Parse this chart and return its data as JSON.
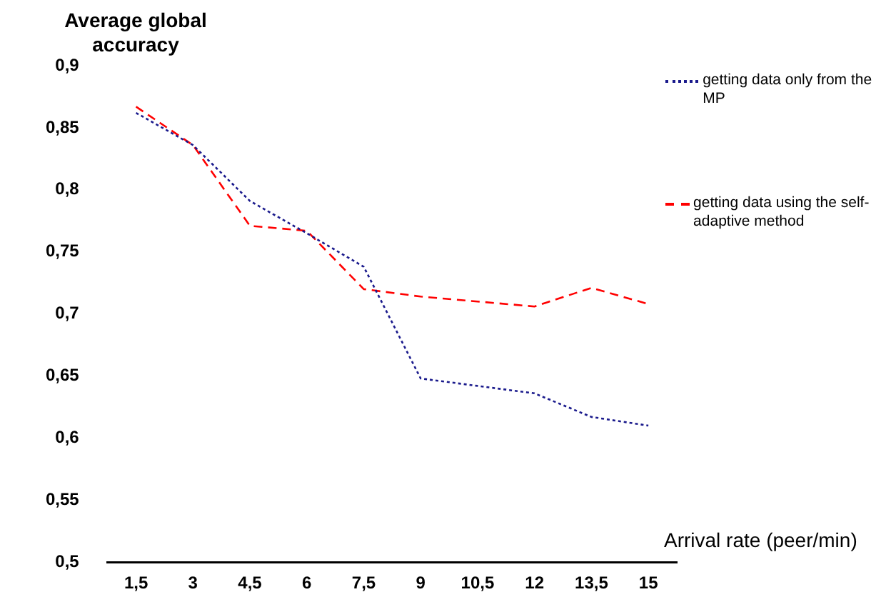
{
  "chart_data": {
    "type": "line",
    "ylabel": "Average global accuracy",
    "xlabel": "Arrival rate (peer/min)",
    "categories": [
      "1,5",
      "3",
      "4,5",
      "6",
      "7,5",
      "9",
      "10,5",
      "12",
      "13,5",
      "15"
    ],
    "ylim": [
      0.5,
      0.9
    ],
    "yticks": [
      {
        "value": 0.5,
        "label": "0,5"
      },
      {
        "value": 0.55,
        "label": "0,55"
      },
      {
        "value": 0.6,
        "label": "0,6"
      },
      {
        "value": 0.65,
        "label": "0,65"
      },
      {
        "value": 0.7,
        "label": "0,7"
      },
      {
        "value": 0.75,
        "label": "0,75"
      },
      {
        "value": 0.8,
        "label": "0,8"
      },
      {
        "value": 0.85,
        "label": "0,85"
      },
      {
        "value": 0.9,
        "label": "0,9"
      }
    ],
    "series": [
      {
        "name": "getting data only from the MP",
        "color": "#1a1a8c",
        "line_style": "dotted",
        "values": [
          0.862,
          0.836,
          0.791,
          0.765,
          0.738,
          0.648,
          0.642,
          0.636,
          0.617,
          0.61
        ]
      },
      {
        "name": "getting data using the self-adaptive method",
        "color": "#ff0000",
        "line_style": "dashed",
        "values": [
          0.867,
          0.836,
          0.771,
          0.767,
          0.72,
          0.714,
          0.71,
          0.706,
          0.721,
          0.708
        ]
      }
    ],
    "grid": false,
    "legend": "right",
    "marker": "none"
  }
}
